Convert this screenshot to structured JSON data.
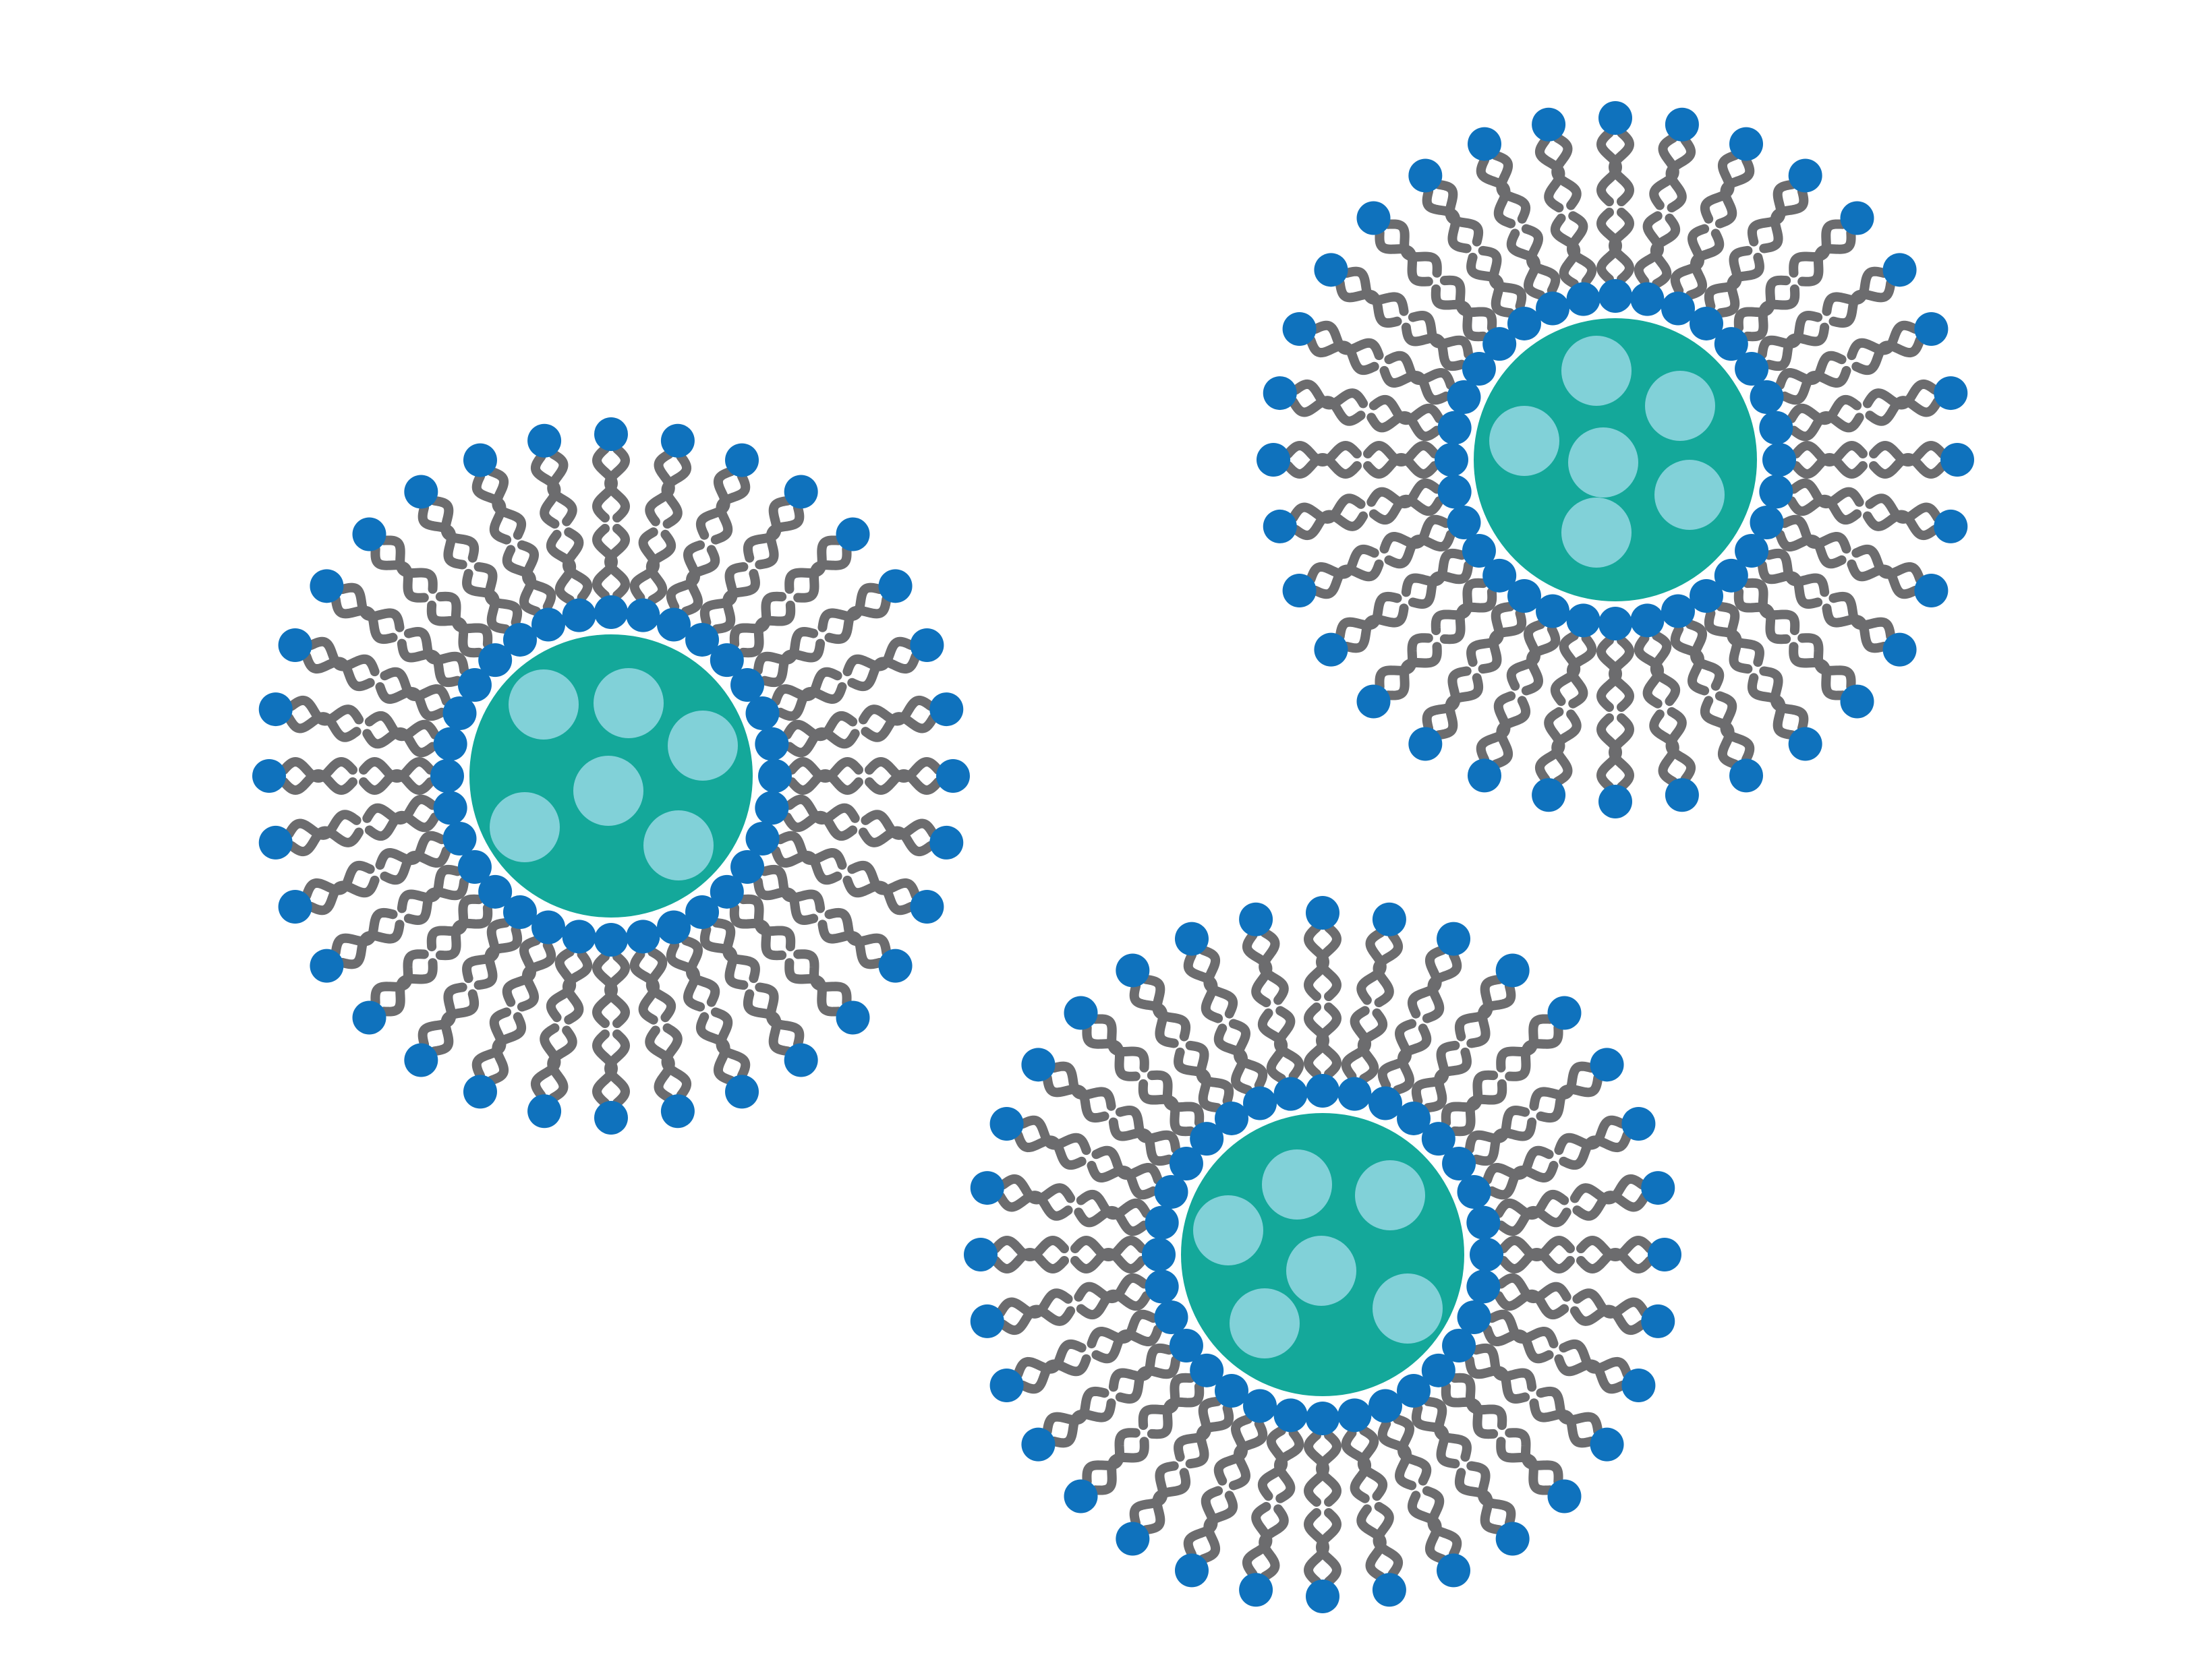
{
  "colors": {
    "background": "#ffffff",
    "core": "#14a89a",
    "cargo": "#81d1d8",
    "head_group": "#0f72bd",
    "tail": "#6c6c6e",
    "tail_gap": "#ffffff"
  },
  "particles": [
    {
      "name": "particle-left",
      "outer_head_count": 32,
      "inner_head_count": 32,
      "cargo_count": 6
    },
    {
      "name": "particle-top-right",
      "outer_head_count": 32,
      "inner_head_count": 32,
      "cargo_count": 6
    },
    {
      "name": "particle-bottom",
      "outer_head_count": 32,
      "inner_head_count": 32,
      "cargo_count": 6
    }
  ]
}
